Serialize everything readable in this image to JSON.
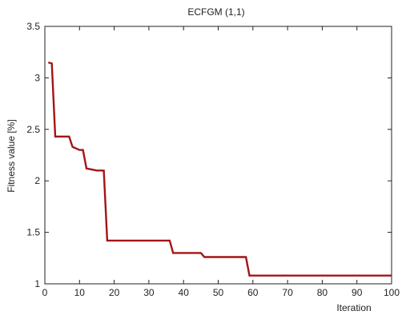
{
  "chart_data": {
    "type": "line",
    "title": "ECFGM (1,1)",
    "xlabel": "Iteration",
    "ylabel": "Fitness value [%]",
    "xlim": [
      0,
      100
    ],
    "ylim": [
      1,
      3.5
    ],
    "xticks": [
      0,
      10,
      20,
      30,
      40,
      50,
      60,
      70,
      80,
      90,
      100
    ],
    "yticks": [
      1,
      1.5,
      2,
      2.5,
      3,
      3.5
    ],
    "xtick_labels": [
      "0",
      "10",
      "20",
      "30",
      "40",
      "50",
      "60",
      "70",
      "80",
      "90",
      "100"
    ],
    "ytick_labels": [
      "1",
      "1.5",
      "2",
      "2.5",
      "3",
      "3.5"
    ],
    "grid": false,
    "series": [
      {
        "color": "#a31515",
        "x": [
          1,
          2,
          3,
          7,
          8,
          10,
          11,
          12,
          15,
          17,
          18,
          36,
          37,
          45,
          46,
          58,
          59,
          100
        ],
        "y": [
          3.15,
          3.14,
          2.43,
          2.43,
          2.33,
          2.3,
          2.3,
          2.12,
          2.1,
          2.1,
          1.42,
          1.42,
          1.3,
          1.3,
          1.26,
          1.26,
          1.08,
          1.08
        ]
      }
    ]
  }
}
